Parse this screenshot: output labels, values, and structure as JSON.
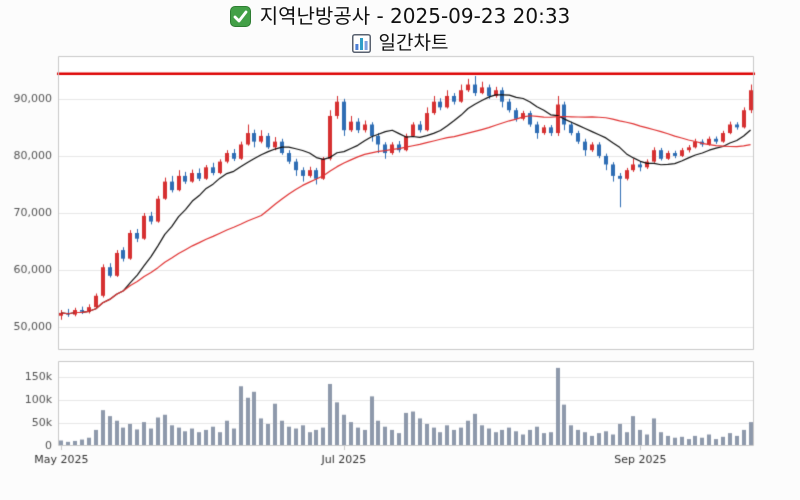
{
  "header": {
    "title": "지역난방공사 - 2025-09-23 20:33",
    "subtitle": "일간차트",
    "checkbox_icon": "green-checkbox",
    "chart_icon": "bar-chart"
  },
  "chart_data": {
    "type": "candlestick",
    "title": "지역난방공사 - 2025-09-23 20:33",
    "subtitle": "일간차트",
    "grid": true,
    "price_axis": {
      "ticks": [
        50000,
        60000,
        70000,
        80000,
        90000
      ],
      "tick_labels": [
        "50,000",
        "60,000",
        "70,000",
        "80,000",
        "90,000"
      ],
      "range": [
        46000,
        97500
      ]
    },
    "volume_axis": {
      "ticks": [
        0,
        50000,
        100000,
        150000
      ],
      "tick_labels": [
        "0",
        "50k",
        "100k",
        "150k"
      ],
      "range": [
        0,
        185000
      ]
    },
    "x_ticks": [
      {
        "label": "May 2025",
        "index": 0
      },
      {
        "label": "Jul 2025",
        "index": 41
      },
      {
        "label": "Sep 2025",
        "index": 84
      }
    ],
    "resistance_line": {
      "price": 94400,
      "color": "#dd0000",
      "width": 2.5
    },
    "moving_averages": [
      {
        "window": 10,
        "color": "#111111"
      },
      {
        "window": 30,
        "color": "#e03131"
      }
    ],
    "colors": {
      "up": "#d63031",
      "down": "#2e6db4",
      "volume": "#8e99ab",
      "grid": "#e7e7e7",
      "border": "#c8c8c8",
      "axis_text": "#555555",
      "x_axis_text": "#333333",
      "background": "#ffffff"
    },
    "candles": [
      [
        52000,
        53000,
        51300,
        52500,
        12000
      ],
      [
        52500,
        53200,
        51800,
        52200,
        9000
      ],
      [
        52200,
        53400,
        51900,
        53000,
        11000
      ],
      [
        53000,
        53600,
        52300,
        52700,
        14000
      ],
      [
        52700,
        54000,
        52400,
        53500,
        18000
      ],
      [
        53500,
        55900,
        53300,
        55500,
        35000
      ],
      [
        55500,
        61000,
        55200,
        60500,
        78000
      ],
      [
        60500,
        61200,
        58700,
        59000,
        65000
      ],
      [
        59000,
        63500,
        58800,
        63000,
        55000
      ],
      [
        63500,
        64000,
        61500,
        62000,
        40000
      ],
      [
        62000,
        67000,
        61800,
        66500,
        48000
      ],
      [
        66500,
        67200,
        64900,
        65500,
        36000
      ],
      [
        65500,
        70000,
        65300,
        69500,
        52000
      ],
      [
        69500,
        70200,
        68000,
        68500,
        38000
      ],
      [
        68500,
        73000,
        68300,
        72500,
        62000
      ],
      [
        72500,
        76200,
        72300,
        75500,
        68000
      ],
      [
        75500,
        76500,
        73600,
        74000,
        45000
      ],
      [
        74000,
        77500,
        73800,
        76500,
        40000
      ],
      [
        76500,
        77200,
        75100,
        75500,
        32000
      ],
      [
        75500,
        77600,
        75300,
        77000,
        38000
      ],
      [
        77000,
        77800,
        75600,
        76000,
        30000
      ],
      [
        76000,
        78400,
        75800,
        78000,
        35000
      ],
      [
        78000,
        78800,
        76600,
        77000,
        42000
      ],
      [
        77000,
        79400,
        76800,
        79000,
        30000
      ],
      [
        79000,
        81000,
        78700,
        80500,
        55000
      ],
      [
        80500,
        81200,
        79100,
        79500,
        38000
      ],
      [
        79500,
        82500,
        79300,
        82000,
        130000
      ],
      [
        82000,
        85500,
        81800,
        84000,
        105000
      ],
      [
        84000,
        84600,
        81500,
        82500,
        118000
      ],
      [
        82500,
        84500,
        82200,
        83500,
        60000
      ],
      [
        83500,
        84000,
        81200,
        81500,
        48000
      ],
      [
        81500,
        83300,
        81000,
        82500,
        92000
      ],
      [
        82500,
        83000,
        80200,
        80500,
        55000
      ],
      [
        80500,
        81000,
        78600,
        79000,
        42000
      ],
      [
        79000,
        79500,
        76500,
        77500,
        38000
      ],
      [
        77500,
        78000,
        75500,
        76500,
        45000
      ],
      [
        76500,
        78100,
        76200,
        77500,
        30000
      ],
      [
        77500,
        77900,
        75000,
        76000,
        35000
      ],
      [
        76000,
        79800,
        75800,
        79500,
        40000
      ],
      [
        79500,
        88000,
        79200,
        87000,
        135000
      ],
      [
        87000,
        90500,
        86500,
        89500,
        95000
      ],
      [
        89500,
        90000,
        83500,
        84500,
        68000
      ],
      [
        84500,
        87000,
        84200,
        86000,
        52000
      ],
      [
        86000,
        86600,
        84000,
        84500,
        40000
      ],
      [
        84500,
        86200,
        84100,
        85500,
        35000
      ],
      [
        85500,
        85900,
        82500,
        83500,
        108000
      ],
      [
        83500,
        84000,
        80500,
        82000,
        55000
      ],
      [
        82000,
        82400,
        79500,
        80500,
        42000
      ],
      [
        80500,
        82400,
        80200,
        82000,
        35000
      ],
      [
        82000,
        82600,
        80600,
        81000,
        28000
      ],
      [
        81000,
        83900,
        80800,
        83500,
        72000
      ],
      [
        83500,
        85900,
        83300,
        85500,
        75000
      ],
      [
        85500,
        86100,
        84100,
        84500,
        60000
      ],
      [
        84500,
        88500,
        84300,
        87500,
        48000
      ],
      [
        87500,
        90500,
        87200,
        89500,
        40000
      ],
      [
        89500,
        90100,
        88000,
        88500,
        30000
      ],
      [
        88500,
        91500,
        88300,
        90500,
        45000
      ],
      [
        90500,
        91000,
        89000,
        89500,
        35000
      ],
      [
        89500,
        92500,
        89300,
        91500,
        40000
      ],
      [
        91500,
        93500,
        91200,
        92500,
        55000
      ],
      [
        92500,
        94000,
        90500,
        91000,
        70000
      ],
      [
        91000,
        93000,
        90800,
        92000,
        45000
      ],
      [
        92000,
        92500,
        90000,
        90500,
        38000
      ],
      [
        90500,
        92100,
        90200,
        91500,
        30000
      ],
      [
        91500,
        92000,
        88500,
        89500,
        35000
      ],
      [
        89500,
        90000,
        87600,
        88000,
        40000
      ],
      [
        88000,
        88400,
        86000,
        86500,
        32000
      ],
      [
        86500,
        87900,
        86200,
        87500,
        25000
      ],
      [
        87500,
        87900,
        85100,
        85500,
        35000
      ],
      [
        85500,
        86000,
        83000,
        84000,
        42000
      ],
      [
        84000,
        85400,
        83700,
        85000,
        28000
      ],
      [
        85000,
        85400,
        83500,
        84000,
        30000
      ],
      [
        84000,
        90500,
        83500,
        89000,
        170000
      ],
      [
        89000,
        89500,
        84500,
        85500,
        90000
      ],
      [
        85500,
        86000,
        83600,
        84000,
        45000
      ],
      [
        84000,
        84400,
        82100,
        82500,
        35000
      ],
      [
        82500,
        83000,
        80000,
        81000,
        30000
      ],
      [
        81000,
        82400,
        80700,
        82000,
        22000
      ],
      [
        82000,
        82400,
        79600,
        80000,
        28000
      ],
      [
        80000,
        80400,
        77500,
        78500,
        32000
      ],
      [
        78500,
        78900,
        75500,
        76500,
        25000
      ],
      [
        76500,
        77000,
        71000,
        76000,
        48000
      ],
      [
        76000,
        77900,
        75700,
        77500,
        30000
      ],
      [
        77500,
        79500,
        77200,
        78500,
        65000
      ],
      [
        78500,
        79000,
        77300,
        78000,
        35000
      ],
      [
        78000,
        79400,
        77700,
        79000,
        25000
      ],
      [
        79000,
        81500,
        78800,
        81000,
        60000
      ],
      [
        81000,
        81400,
        79200,
        79500,
        30000
      ],
      [
        79500,
        80900,
        79300,
        80500,
        22000
      ],
      [
        80500,
        80900,
        79600,
        80000,
        18000
      ],
      [
        80000,
        81400,
        79800,
        81000,
        20000
      ],
      [
        81000,
        81900,
        80600,
        81500,
        15000
      ],
      [
        81500,
        83000,
        81300,
        82500,
        22000
      ],
      [
        82500,
        82900,
        81600,
        82000,
        18000
      ],
      [
        82000,
        83400,
        81800,
        83000,
        25000
      ],
      [
        83000,
        83400,
        82100,
        82500,
        15000
      ],
      [
        82500,
        84400,
        82300,
        84000,
        20000
      ],
      [
        84000,
        86000,
        83800,
        85500,
        28000
      ],
      [
        85500,
        85900,
        84600,
        85000,
        22000
      ],
      [
        85000,
        88500,
        84800,
        88000,
        35000
      ],
      [
        88000,
        92500,
        87500,
        91500,
        52000
      ]
    ]
  }
}
